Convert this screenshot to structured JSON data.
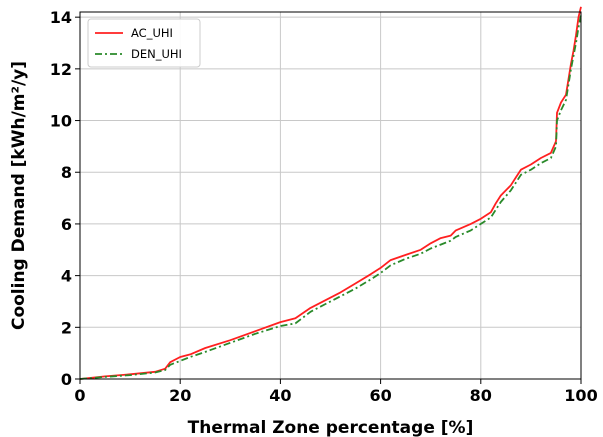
{
  "chart_data": {
    "type": "line",
    "xlabel": "Thermal Zone percentage [%]",
    "ylabel": "Cooling Demand [kWh/m²/y]",
    "xlim": [
      0,
      100
    ],
    "ylim": [
      0,
      14.2
    ],
    "xticks": [
      0,
      20,
      40,
      60,
      80,
      100
    ],
    "xtick_labels": [
      "0",
      "20",
      "40",
      "60",
      "80",
      "100"
    ],
    "yticks": [
      0,
      2,
      4,
      6,
      8,
      10,
      12,
      14
    ],
    "ytick_labels": [
      "0",
      "2",
      "4",
      "6",
      "8",
      "10",
      "12",
      "14"
    ],
    "grid": true,
    "legend_position": "top-left",
    "series": [
      {
        "name": "AC_UHI",
        "color": "#ff2020",
        "style": "solid",
        "x": [
          0,
          5,
          10,
          15,
          17,
          18,
          20,
          22,
          25,
          30,
          35,
          40,
          43,
          46,
          49,
          52,
          55,
          58,
          60,
          62,
          65,
          68,
          70,
          72,
          74,
          75,
          78,
          80,
          82,
          83,
          84,
          86,
          87,
          88,
          90,
          92,
          94,
          95,
          95.2,
          96,
          97,
          98,
          98.5,
          99,
          99.5,
          100
        ],
        "y": [
          0,
          0.1,
          0.18,
          0.28,
          0.4,
          0.65,
          0.85,
          0.95,
          1.2,
          1.5,
          1.85,
          2.2,
          2.35,
          2.75,
          3.05,
          3.35,
          3.7,
          4.05,
          4.3,
          4.6,
          4.8,
          5.0,
          5.25,
          5.45,
          5.55,
          5.75,
          6.0,
          6.2,
          6.45,
          6.8,
          7.1,
          7.5,
          7.8,
          8.1,
          8.3,
          8.55,
          8.75,
          9.2,
          10.3,
          10.7,
          11.0,
          12.2,
          12.7,
          13.3,
          14.0,
          14.4
        ]
      },
      {
        "name": "DEN_UHI",
        "color": "#2a8a2a",
        "style": "dashdot",
        "x": [
          0,
          5,
          10,
          15,
          17,
          18,
          20,
          22,
          25,
          30,
          35,
          40,
          43,
          46,
          49,
          52,
          55,
          58,
          60,
          62,
          65,
          68,
          70,
          72,
          74,
          75,
          78,
          80,
          82,
          83,
          84,
          86,
          87,
          88,
          90,
          92,
          94,
          95,
          95.2,
          96,
          97,
          98,
          98.5,
          99,
          99.5,
          100
        ],
        "y": [
          0,
          0.08,
          0.15,
          0.25,
          0.35,
          0.55,
          0.7,
          0.85,
          1.05,
          1.4,
          1.75,
          2.05,
          2.15,
          2.6,
          2.9,
          3.2,
          3.5,
          3.85,
          4.1,
          4.4,
          4.65,
          4.85,
          5.05,
          5.2,
          5.35,
          5.5,
          5.75,
          6.0,
          6.25,
          6.55,
          6.85,
          7.3,
          7.6,
          7.9,
          8.1,
          8.35,
          8.55,
          9.0,
          10.0,
          10.4,
          10.8,
          12.0,
          12.5,
          13.0,
          13.6,
          14.1
        ]
      }
    ]
  }
}
